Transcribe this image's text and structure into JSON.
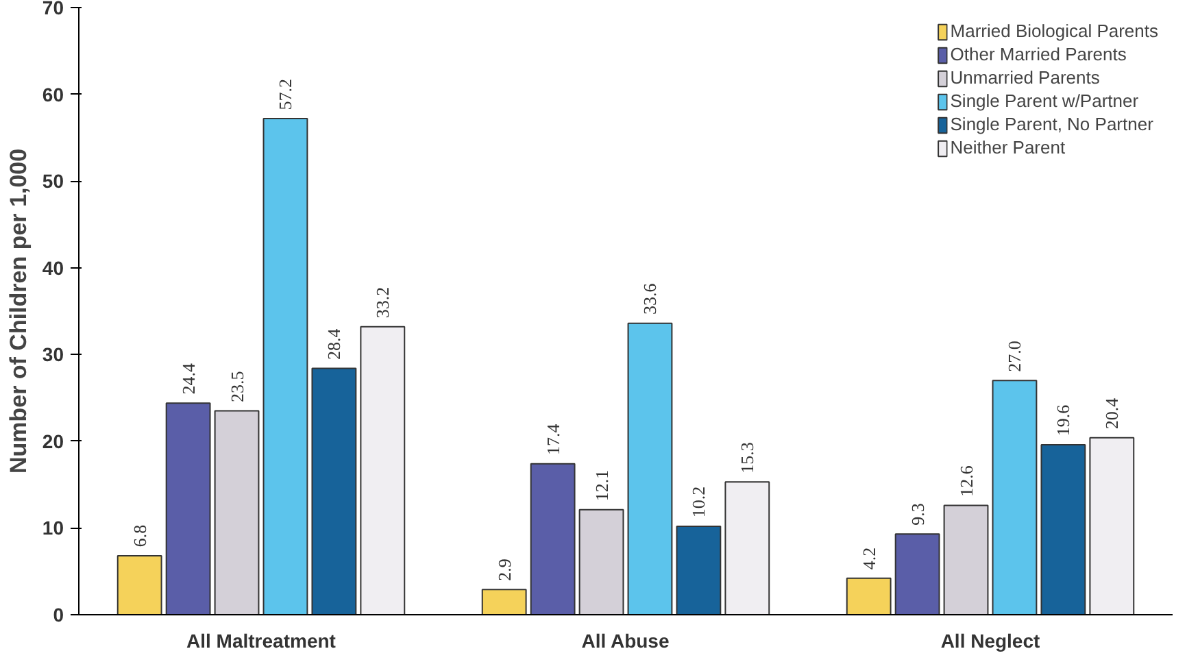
{
  "chart_data": {
    "type": "bar",
    "ylabel": "Number of Children per 1,000",
    "categories": [
      "All Maltreatment",
      "All Abuse",
      "All Neglect"
    ],
    "series": [
      {
        "name": "Married Biological Parents",
        "color": "#f5d25a",
        "values": [
          6.8,
          2.9,
          4.2
        ],
        "value_labels": [
          "6.8",
          "2.9",
          "4.2"
        ]
      },
      {
        "name": "Other Married Parents",
        "color": "#5a5ea8",
        "values": [
          24.4,
          17.4,
          9.3
        ],
        "value_labels": [
          "24.4",
          "17.4",
          "9.3"
        ]
      },
      {
        "name": "Unmarried Parents",
        "color": "#d4d0d8",
        "values": [
          23.5,
          12.1,
          12.6
        ],
        "value_labels": [
          "23.5",
          "12.1",
          "12.6"
        ]
      },
      {
        "name": "Single Parent w/Partner",
        "color": "#5cc4ec",
        "values": [
          57.2,
          33.6,
          27.0
        ],
        "value_labels": [
          "57.2",
          "33.6",
          "27.0"
        ]
      },
      {
        "name": "Single Parent, No Partner",
        "color": "#17639a",
        "values": [
          28.4,
          10.2,
          19.6
        ],
        "value_labels": [
          "28.4",
          "10.2",
          "19.6"
        ]
      },
      {
        "name": "Neither Parent",
        "color": "#f0eef2",
        "values": [
          33.2,
          15.3,
          20.4
        ],
        "value_labels": [
          "33.2",
          "15.3",
          "20.4"
        ]
      }
    ],
    "ylim": [
      0,
      70
    ],
    "yticks": [
      0,
      10,
      20,
      30,
      40,
      50,
      60,
      70
    ],
    "grid": false,
    "legend": "top right"
  }
}
